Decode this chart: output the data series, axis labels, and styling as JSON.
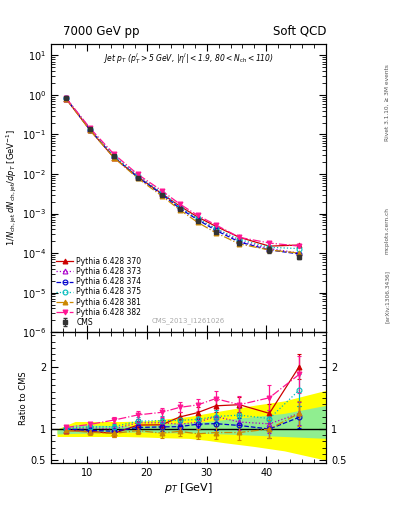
{
  "title_left": "7000 GeV pp",
  "title_right": "Soft QCD",
  "watermark": "CMS_2013_I1261026",
  "cms_data_x": [
    6.5,
    10.5,
    14.5,
    18.5,
    22.5,
    25.5,
    28.5,
    31.5,
    35.5,
    40.5,
    45.5
  ],
  "cms_data_y": [
    0.82,
    0.135,
    0.028,
    0.008,
    0.003,
    0.0013,
    0.00065,
    0.00035,
    0.00018,
    0.00012,
    8e-05
  ],
  "cms_data_yerr": [
    0.05,
    0.01,
    0.002,
    0.0006,
    0.0002,
    0.0001,
    5e-05,
    3e-05,
    2e-05,
    2e-05,
    1e-05
  ],
  "p370_x": [
    6.5,
    10.5,
    14.5,
    18.5,
    22.5,
    25.5,
    28.5,
    31.5,
    35.5,
    40.5,
    45.5
  ],
  "p370_y": [
    0.8,
    0.13,
    0.026,
    0.0085,
    0.0032,
    0.00155,
    0.00082,
    0.00048,
    0.00025,
    0.00015,
    0.00016
  ],
  "p373_x": [
    6.5,
    10.5,
    14.5,
    18.5,
    22.5,
    25.5,
    28.5,
    31.5,
    35.5,
    40.5,
    45.5
  ],
  "p373_y": [
    0.81,
    0.138,
    0.028,
    0.0088,
    0.0033,
    0.0014,
    0.00072,
    0.00042,
    0.0002,
    0.00013,
    0.0001
  ],
  "p374_x": [
    6.5,
    10.5,
    14.5,
    18.5,
    22.5,
    25.5,
    28.5,
    31.5,
    35.5,
    40.5,
    45.5
  ],
  "p374_y": [
    0.82,
    0.132,
    0.027,
    0.0082,
    0.0031,
    0.00135,
    0.0007,
    0.00038,
    0.00019,
    0.00012,
    9.5e-05
  ],
  "p375_x": [
    6.5,
    10.5,
    14.5,
    18.5,
    22.5,
    25.5,
    28.5,
    31.5,
    35.5,
    40.5,
    45.5
  ],
  "p375_y": [
    0.83,
    0.14,
    0.029,
    0.009,
    0.0034,
    0.00148,
    0.00075,
    0.00042,
    0.00022,
    0.00014,
    0.00013
  ],
  "p381_x": [
    6.5,
    10.5,
    14.5,
    18.5,
    22.5,
    25.5,
    28.5,
    31.5,
    35.5,
    40.5,
    45.5
  ],
  "p381_y": [
    0.8,
    0.128,
    0.026,
    0.0078,
    0.0028,
    0.00125,
    0.0006,
    0.00033,
    0.00017,
    0.00012,
    0.0001
  ],
  "p382_x": [
    6.5,
    10.5,
    14.5,
    18.5,
    22.5,
    25.5,
    28.5,
    31.5,
    35.5,
    40.5,
    45.5
  ],
  "p382_y": [
    0.84,
    0.145,
    0.032,
    0.0098,
    0.0038,
    0.00175,
    0.0009,
    0.00052,
    0.00025,
    0.00018,
    0.00015
  ],
  "ratio_x": [
    6.5,
    10.5,
    14.5,
    18.5,
    22.5,
    25.5,
    28.5,
    31.5,
    35.5,
    40.5,
    45.5
  ],
  "r370_y": [
    0.975,
    0.963,
    0.929,
    1.063,
    1.067,
    1.192,
    1.262,
    1.371,
    1.389,
    1.25,
    2.0
  ],
  "r373_y": [
    0.988,
    1.022,
    1.0,
    1.1,
    1.1,
    1.077,
    1.108,
    1.2,
    1.111,
    1.083,
    1.25
  ],
  "r374_y": [
    1.0,
    0.978,
    0.964,
    1.025,
    1.033,
    1.038,
    1.077,
    1.086,
    1.056,
    1.0,
    1.188
  ],
  "r375_y": [
    1.012,
    1.037,
    1.036,
    1.125,
    1.133,
    1.138,
    1.154,
    1.2,
    1.222,
    1.167,
    1.625
  ],
  "r381_y": [
    0.976,
    0.948,
    0.929,
    0.975,
    0.933,
    0.962,
    0.923,
    0.943,
    0.944,
    1.0,
    1.25
  ],
  "r382_y": [
    1.024,
    1.074,
    1.143,
    1.225,
    1.267,
    1.346,
    1.385,
    1.486,
    1.389,
    1.5,
    1.875
  ],
  "r370_yerr": [
    0.04,
    0.04,
    0.05,
    0.06,
    0.07,
    0.08,
    0.09,
    0.1,
    0.12,
    0.15,
    0.2
  ],
  "r373_yerr": [
    0.04,
    0.04,
    0.05,
    0.06,
    0.07,
    0.07,
    0.08,
    0.1,
    0.12,
    0.14,
    0.18
  ],
  "r374_yerr": [
    0.04,
    0.04,
    0.05,
    0.06,
    0.07,
    0.07,
    0.08,
    0.1,
    0.12,
    0.14,
    0.18
  ],
  "r375_yerr": [
    0.04,
    0.04,
    0.05,
    0.06,
    0.07,
    0.07,
    0.08,
    0.1,
    0.12,
    0.14,
    0.25
  ],
  "r381_yerr": [
    0.04,
    0.04,
    0.05,
    0.06,
    0.07,
    0.07,
    0.08,
    0.1,
    0.12,
    0.14,
    0.2
  ],
  "r382_yerr": [
    0.04,
    0.04,
    0.05,
    0.06,
    0.07,
    0.08,
    0.1,
    0.12,
    0.14,
    0.2,
    0.3
  ],
  "green_band_x": [
    5,
    8,
    12,
    16,
    20,
    23,
    27,
    30,
    33,
    38,
    43,
    50
  ],
  "green_band_low": [
    0.92,
    0.93,
    0.94,
    0.95,
    0.95,
    0.94,
    0.94,
    0.93,
    0.92,
    0.9,
    0.88,
    0.85
  ],
  "green_band_high": [
    1.0,
    1.07,
    1.06,
    1.05,
    1.05,
    1.08,
    1.1,
    1.12,
    1.15,
    1.2,
    1.25,
    1.38
  ],
  "yellow_band_low": [
    0.88,
    0.88,
    0.88,
    0.88,
    0.87,
    0.86,
    0.85,
    0.82,
    0.78,
    0.72,
    0.65,
    0.5
  ],
  "yellow_band_high": [
    1.0,
    1.12,
    1.12,
    1.12,
    1.13,
    1.16,
    1.2,
    1.25,
    1.3,
    1.38,
    1.45,
    1.62
  ],
  "colors": {
    "cms": "#333333",
    "p370": "#CC0000",
    "p373": "#AA00CC",
    "p374": "#0000CC",
    "p375": "#00BBBB",
    "p381": "#CC8800",
    "p382": "#FF1493"
  },
  "xlim": [
    4,
    50
  ],
  "ylim_main": [
    1e-06,
    20
  ],
  "ylim_ratio": [
    0.45,
    2.55
  ],
  "xticks": [
    10,
    20,
    30,
    40
  ]
}
